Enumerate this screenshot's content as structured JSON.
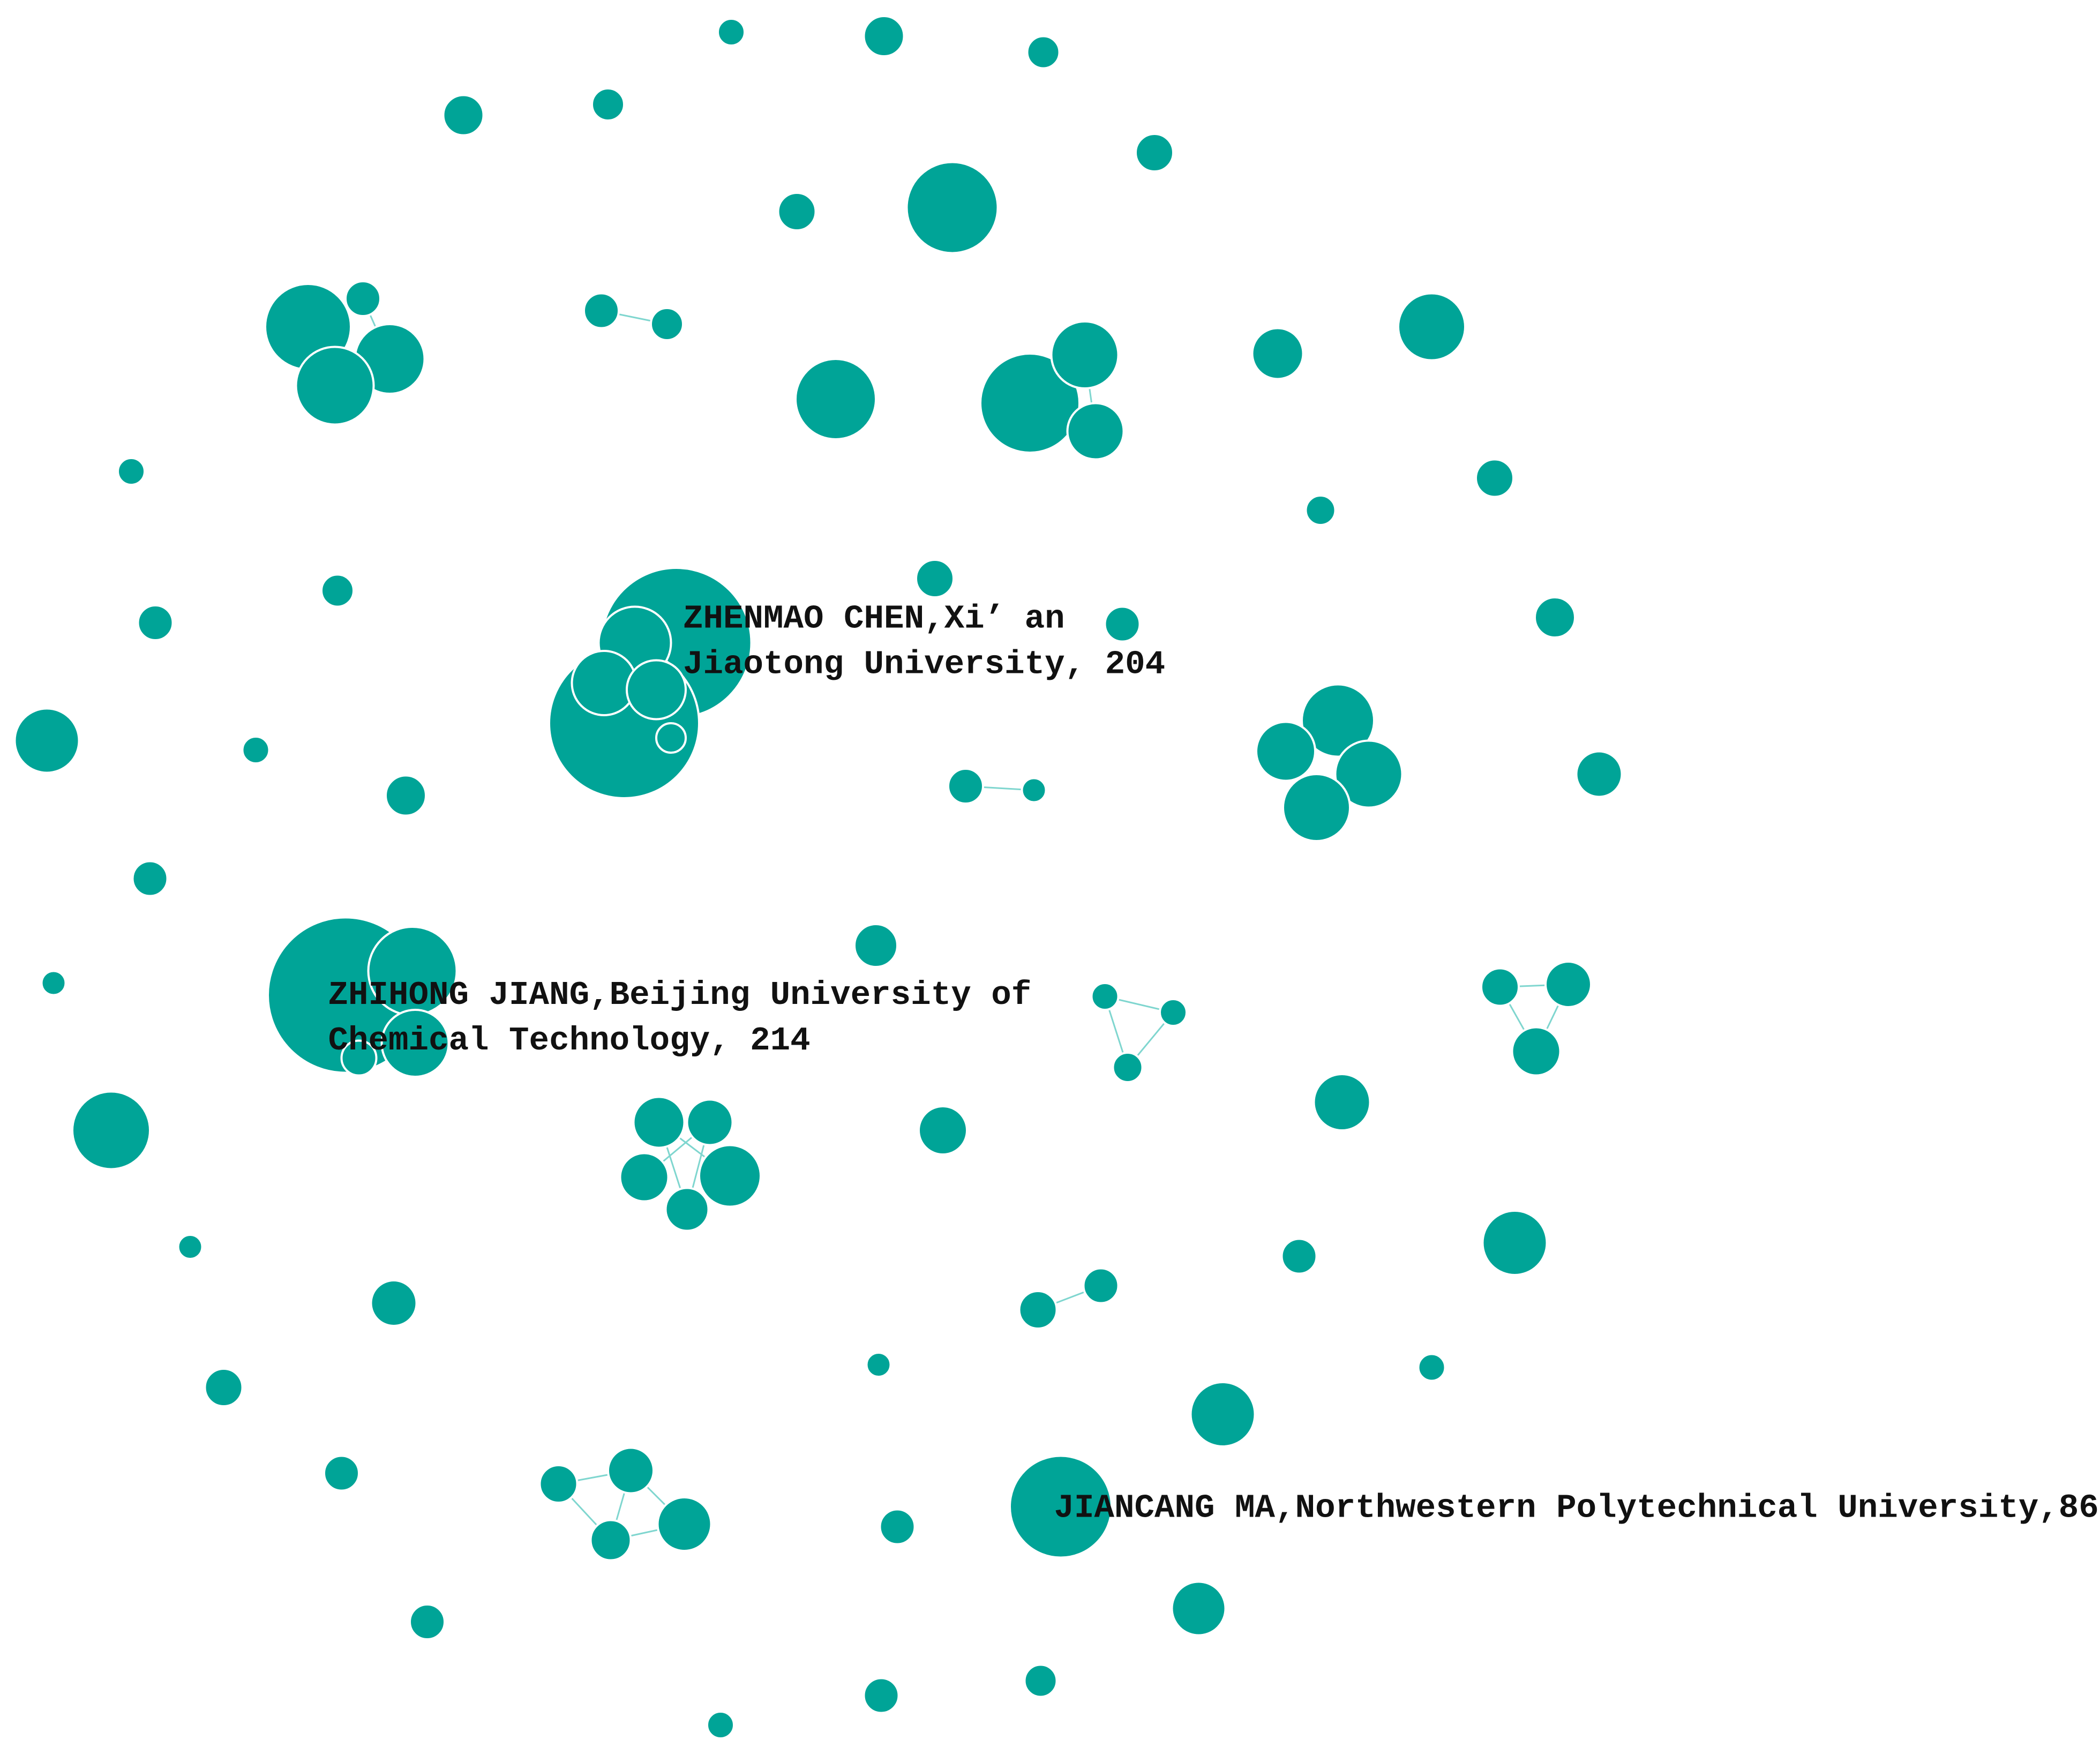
{
  "nodes": [
    {
      "label_lines": [
        "ZHENMAO CHEN,Xi’ an",
        "Jiaotong University, 204"
      ]
    },
    {
      "label_lines": [
        "ZHIHONG JIANG,Beijing University of",
        "Chemical Technology, 214"
      ]
    },
    {
      "label_lines": [
        "JIANCANG MA,Northwestern Polytechnical University,86"
      ]
    }
  ]
}
